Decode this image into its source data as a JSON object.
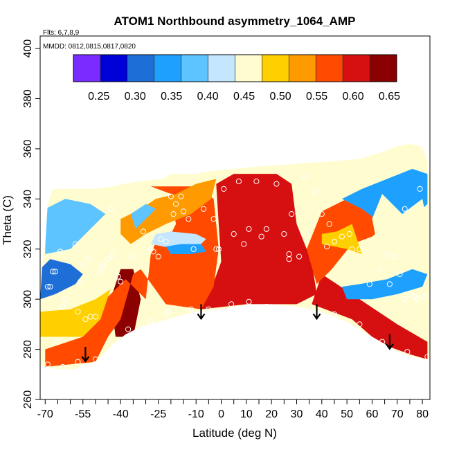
{
  "chart_data": {
    "type": "heatmap",
    "title": "ATOM1 Northbound asymmetry_1064_AMP",
    "flights_note": "Flts: 6,7,8,9",
    "dates_note": "MMDD: 0812,0815,0817,0820",
    "xlabel": "Latitude (deg N)",
    "ylabel": "Theta (C)",
    "xlim": [
      -72,
      83
    ],
    "ylim": [
      260,
      405
    ],
    "x_ticks": [
      -70,
      -55,
      -40,
      -25,
      -10,
      0,
      10,
      20,
      30,
      40,
      50,
      60,
      70,
      80
    ],
    "x_tick_labels": [
      "-70",
      "-55",
      "-40",
      "-25",
      "-10",
      "0",
      "10",
      "20",
      "30",
      "40",
      "50",
      "60",
      "70",
      "80"
    ],
    "x_minor_ticks": [
      -65,
      -60,
      -50,
      -45,
      -35,
      -30,
      -20,
      -15,
      -5,
      5,
      15,
      25,
      35,
      45,
      55,
      65,
      75
    ],
    "y_ticks": [
      260,
      280,
      300,
      320,
      340,
      360,
      380,
      400
    ],
    "y_tick_labels": [
      "260",
      "280",
      "300",
      "320",
      "340",
      "360",
      "380",
      "400"
    ],
    "colorbar": {
      "range": [
        0.215,
        0.66
      ],
      "ticks": [
        0.25,
        0.3,
        0.35,
        0.4,
        0.45,
        0.5,
        0.55,
        0.6,
        0.65
      ],
      "tick_labels": [
        "0.25",
        "0.30",
        "0.35",
        "0.40",
        "0.45",
        "0.50",
        "0.55",
        "0.60",
        "0.65"
      ],
      "colors": [
        "#7a2bff",
        "#0000d8",
        "#1e6ed8",
        "#1ea0ff",
        "#5ec4ff",
        "#c4e6ff",
        "#fffdd0",
        "#ffd000",
        "#ff9a00",
        "#ff4a00",
        "#d61010",
        "#8b0000"
      ]
    },
    "upper_boundary": [
      [
        -70,
        321
      ],
      [
        -69,
        338
      ],
      [
        -67,
        344
      ],
      [
        -50,
        344
      ],
      [
        -43,
        345
      ],
      [
        -39,
        346
      ],
      [
        -33,
        347
      ],
      [
        -23,
        348
      ],
      [
        -20,
        350
      ],
      [
        -10,
        350
      ],
      [
        -5,
        351
      ],
      [
        5,
        352
      ],
      [
        15,
        353
      ],
      [
        30,
        354
      ],
      [
        35,
        354.5
      ],
      [
        45,
        355
      ],
      [
        55,
        356
      ],
      [
        65,
        359
      ],
      [
        70,
        361
      ],
      [
        75,
        362
      ],
      [
        80,
        361
      ],
      [
        82,
        355
      ],
      [
        83,
        345
      ],
      [
        83,
        300
      ]
    ],
    "lower_boundary": [
      [
        -72,
        274
      ],
      [
        -70,
        273
      ],
      [
        -65,
        272
      ],
      [
        -58,
        272
      ],
      [
        -55,
        274
      ],
      [
        -50,
        275
      ],
      [
        -46,
        279
      ],
      [
        -43,
        282
      ],
      [
        -38,
        286
      ],
      [
        -32,
        289
      ],
      [
        -25,
        291
      ],
      [
        -18,
        293
      ],
      [
        -10,
        295
      ],
      [
        0,
        296
      ],
      [
        11,
        298
      ],
      [
        20,
        298
      ],
      [
        30,
        297
      ],
      [
        40,
        295
      ],
      [
        50,
        291
      ],
      [
        60,
        285
      ],
      [
        67,
        281
      ],
      [
        72,
        278
      ],
      [
        77,
        277
      ],
      [
        82,
        276
      ],
      [
        83,
        276
      ]
    ],
    "left_boundary_top": [
      [
        -72,
        274
      ],
      [
        -72,
        300
      ],
      [
        -71,
        316
      ],
      [
        -70,
        321
      ]
    ],
    "regions": [
      {
        "value": 0.65,
        "poly": [
          [
            -42,
            285
          ],
          [
            -35,
            285
          ],
          [
            -32,
            300
          ],
          [
            -35,
            312
          ],
          [
            -40,
            312
          ],
          [
            -44,
            300
          ]
        ]
      },
      {
        "value": 0.62,
        "poly": [
          [
            -8,
            296
          ],
          [
            10,
            298
          ],
          [
            30,
            298
          ],
          [
            38,
            302
          ],
          [
            36,
            315
          ],
          [
            30,
            330
          ],
          [
            28,
            346
          ],
          [
            22,
            350
          ],
          [
            5,
            350
          ],
          [
            -2,
            346
          ],
          [
            -1,
            330
          ],
          [
            0,
            315
          ],
          [
            -4,
            304
          ]
        ]
      },
      {
        "value": 0.58,
        "poly": [
          [
            -70,
            273
          ],
          [
            -50,
            275
          ],
          [
            -45,
            285
          ],
          [
            -40,
            292
          ],
          [
            -35,
            310
          ],
          [
            -32,
            312
          ],
          [
            -22,
            298
          ],
          [
            -8,
            296
          ],
          [
            -3,
            305
          ],
          [
            -1,
            320
          ],
          [
            -3,
            340
          ],
          [
            -10,
            345
          ],
          [
            -28,
            345
          ],
          [
            -20,
            342
          ],
          [
            -18,
            330
          ],
          [
            -22,
            322
          ],
          [
            -25,
            325
          ],
          [
            -28,
            318
          ],
          [
            -30,
            300
          ],
          [
            -38,
            308
          ],
          [
            -46,
            300
          ],
          [
            -55,
            285
          ],
          [
            -70,
            280
          ]
        ]
      },
      {
        "value": 0.6,
        "poly": [
          [
            36,
            298
          ],
          [
            52,
            292
          ],
          [
            60,
            285
          ],
          [
            67,
            281
          ],
          [
            75,
            278
          ],
          [
            82,
            276
          ],
          [
            82,
            283
          ],
          [
            70,
            290
          ],
          [
            58,
            298
          ],
          [
            46,
            306
          ],
          [
            40,
            310
          ]
        ]
      },
      {
        "value": 0.55,
        "poly": [
          [
            38,
            306
          ],
          [
            44,
            312
          ],
          [
            52,
            322
          ],
          [
            60,
            325
          ],
          [
            66,
            330
          ],
          [
            62,
            338
          ],
          [
            50,
            340
          ],
          [
            40,
            335
          ],
          [
            34,
            320
          ]
        ]
      },
      {
        "value": 0.48,
        "poly": [
          [
            -72,
            285
          ],
          [
            -55,
            285
          ],
          [
            -48,
            292
          ],
          [
            -44,
            304
          ],
          [
            -50,
            300
          ],
          [
            -60,
            296
          ],
          [
            -72,
            295
          ]
        ]
      },
      {
        "value": 0.5,
        "poly": [
          [
            40,
            322
          ],
          [
            50,
            320
          ],
          [
            56,
            318
          ],
          [
            52,
            330
          ],
          [
            46,
            327
          ],
          [
            40,
            326
          ]
        ]
      },
      {
        "value": 0.52,
        "poly": [
          [
            -40,
            332
          ],
          [
            -32,
            336
          ],
          [
            -26,
            340
          ],
          [
            -18,
            342
          ],
          [
            -10,
            346
          ],
          [
            -2,
            348
          ],
          [
            -4,
            340
          ],
          [
            -12,
            334
          ],
          [
            -22,
            330
          ],
          [
            -30,
            326
          ],
          [
            -36,
            322
          ],
          [
            -40,
            326
          ]
        ]
      },
      {
        "value": 0.3,
        "poly": [
          [
            -72,
            300
          ],
          [
            -66,
            302
          ],
          [
            -58,
            306
          ],
          [
            -55,
            310
          ],
          [
            -60,
            314
          ],
          [
            -68,
            316
          ],
          [
            -72,
            312
          ]
        ]
      },
      {
        "value": 0.33,
        "poly": [
          [
            50,
            300
          ],
          [
            60,
            300
          ],
          [
            70,
            302
          ],
          [
            80,
            305
          ],
          [
            82,
            310
          ],
          [
            76,
            312
          ],
          [
            66,
            308
          ],
          [
            55,
            306
          ],
          [
            48,
            305
          ]
        ]
      },
      {
        "value": 0.38,
        "poly": [
          [
            -70,
            318
          ],
          [
            -60,
            320
          ],
          [
            -52,
            328
          ],
          [
            -46,
            334
          ],
          [
            -52,
            338
          ],
          [
            -62,
            340
          ],
          [
            -70,
            336
          ]
        ]
      },
      {
        "value": 0.35,
        "poly": [
          [
            48,
            340
          ],
          [
            56,
            344
          ],
          [
            66,
            348
          ],
          [
            76,
            352
          ],
          [
            82,
            350
          ],
          [
            82,
            338
          ],
          [
            74,
            330
          ],
          [
            64,
            330
          ],
          [
            56,
            336
          ]
        ]
      },
      {
        "value": 0.42,
        "poly": [
          [
            -28,
            322
          ],
          [
            -18,
            320
          ],
          [
            -10,
            320
          ],
          [
            -6,
            324
          ],
          [
            -10,
            326
          ],
          [
            -20,
            327
          ],
          [
            -26,
            326
          ]
        ]
      },
      {
        "value": 0.36,
        "poly": [
          [
            -20,
            318
          ],
          [
            -12,
            318
          ],
          [
            -6,
            319
          ],
          [
            -8,
            322
          ],
          [
            -16,
            322
          ],
          [
            -22,
            321
          ]
        ]
      },
      {
        "value": 0.4,
        "poly": [
          [
            -34,
            328
          ],
          [
            -30,
            332
          ],
          [
            -26,
            336
          ],
          [
            -30,
            338
          ],
          [
            -36,
            334
          ]
        ]
      },
      {
        "value": 0.45,
        "poly": [
          [
            64,
            342
          ],
          [
            72,
            334
          ],
          [
            80,
            340
          ],
          [
            82,
            330
          ],
          [
            76,
            322
          ],
          [
            70,
            318
          ],
          [
            62,
            322
          ],
          [
            60,
            332
          ]
        ]
      }
    ],
    "points": [
      [
        -69,
        274
      ],
      [
        -66,
        272
      ],
      [
        -63,
        273
      ],
      [
        -60,
        272
      ],
      [
        -57,
        275
      ],
      [
        -50,
        276
      ],
      [
        -47,
        276
      ],
      [
        -37,
        288
      ],
      [
        -28,
        291
      ],
      [
        -22,
        294
      ],
      [
        -21,
        295
      ],
      [
        -12,
        296
      ],
      [
        -5,
        296
      ],
      [
        4,
        298
      ],
      [
        11,
        299
      ],
      [
        18,
        297
      ],
      [
        25,
        296
      ],
      [
        33,
        295
      ],
      [
        36,
        296
      ],
      [
        45,
        294
      ],
      [
        55,
        290
      ],
      [
        64,
        283
      ],
      [
        72,
        278
      ],
      [
        74,
        279
      ],
      [
        82,
        277
      ],
      [
        -67,
        311
      ],
      [
        -66,
        311
      ],
      [
        -62,
        300
      ],
      [
        -57,
        295
      ],
      [
        -56,
        307
      ],
      [
        -54,
        292
      ],
      [
        -52,
        293
      ],
      [
        -50,
        293
      ],
      [
        -47,
        313
      ],
      [
        -45,
        316
      ],
      [
        -40,
        307
      ],
      [
        -35,
        317
      ],
      [
        -31,
        327
      ],
      [
        -28,
        320
      ],
      [
        -27,
        319
      ],
      [
        -25,
        317
      ],
      [
        -24,
        324
      ],
      [
        -22,
        323
      ],
      [
        -20,
        341
      ],
      [
        -19,
        334
      ],
      [
        -18,
        338
      ],
      [
        -16,
        341
      ],
      [
        -15,
        335
      ],
      [
        -13,
        332
      ],
      [
        -11,
        320
      ],
      [
        -7,
        336
      ],
      [
        -3,
        332
      ],
      [
        -2,
        320
      ],
      [
        -1,
        320
      ],
      [
        1,
        344
      ],
      [
        5,
        326
      ],
      [
        7,
        347
      ],
      [
        9,
        322
      ],
      [
        11,
        328
      ],
      [
        14,
        347
      ],
      [
        16,
        325
      ],
      [
        18,
        328
      ],
      [
        22,
        346
      ],
      [
        25,
        326
      ],
      [
        27,
        316
      ],
      [
        27,
        318
      ],
      [
        28,
        334
      ],
      [
        31,
        317
      ],
      [
        33,
        349
      ],
      [
        37,
        343
      ],
      [
        40,
        334
      ],
      [
        42,
        321
      ],
      [
        43,
        330
      ],
      [
        45,
        323
      ],
      [
        48,
        325
      ],
      [
        51,
        326
      ],
      [
        52,
        320
      ],
      [
        55,
        320
      ],
      [
        59,
        306
      ],
      [
        63,
        312
      ],
      [
        66,
        318
      ],
      [
        67,
        306
      ],
      [
        69,
        317
      ],
      [
        71,
        310
      ],
      [
        73,
        300
      ],
      [
        75,
        302
      ],
      [
        77,
        301
      ],
      [
        78,
        300
      ],
      [
        81,
        301
      ],
      [
        73,
        336
      ],
      [
        79,
        344
      ],
      [
        80,
        361
      ],
      [
        -64,
        319
      ],
      [
        -58,
        322
      ],
      [
        -55,
        314
      ],
      [
        -53,
        316
      ],
      [
        -69,
        305
      ],
      [
        -68,
        305
      ],
      [
        -63,
        297
      ],
      [
        -65,
        283
      ],
      [
        -41,
        309
      ],
      [
        -48,
        311
      ],
      [
        -47,
        314
      ],
      [
        -43,
        318
      ],
      [
        -44,
        336
      ]
    ],
    "arrows": [
      [
        -54,
        281
      ],
      [
        -8,
        298
      ],
      [
        38,
        298
      ],
      [
        67,
        286
      ]
    ]
  }
}
